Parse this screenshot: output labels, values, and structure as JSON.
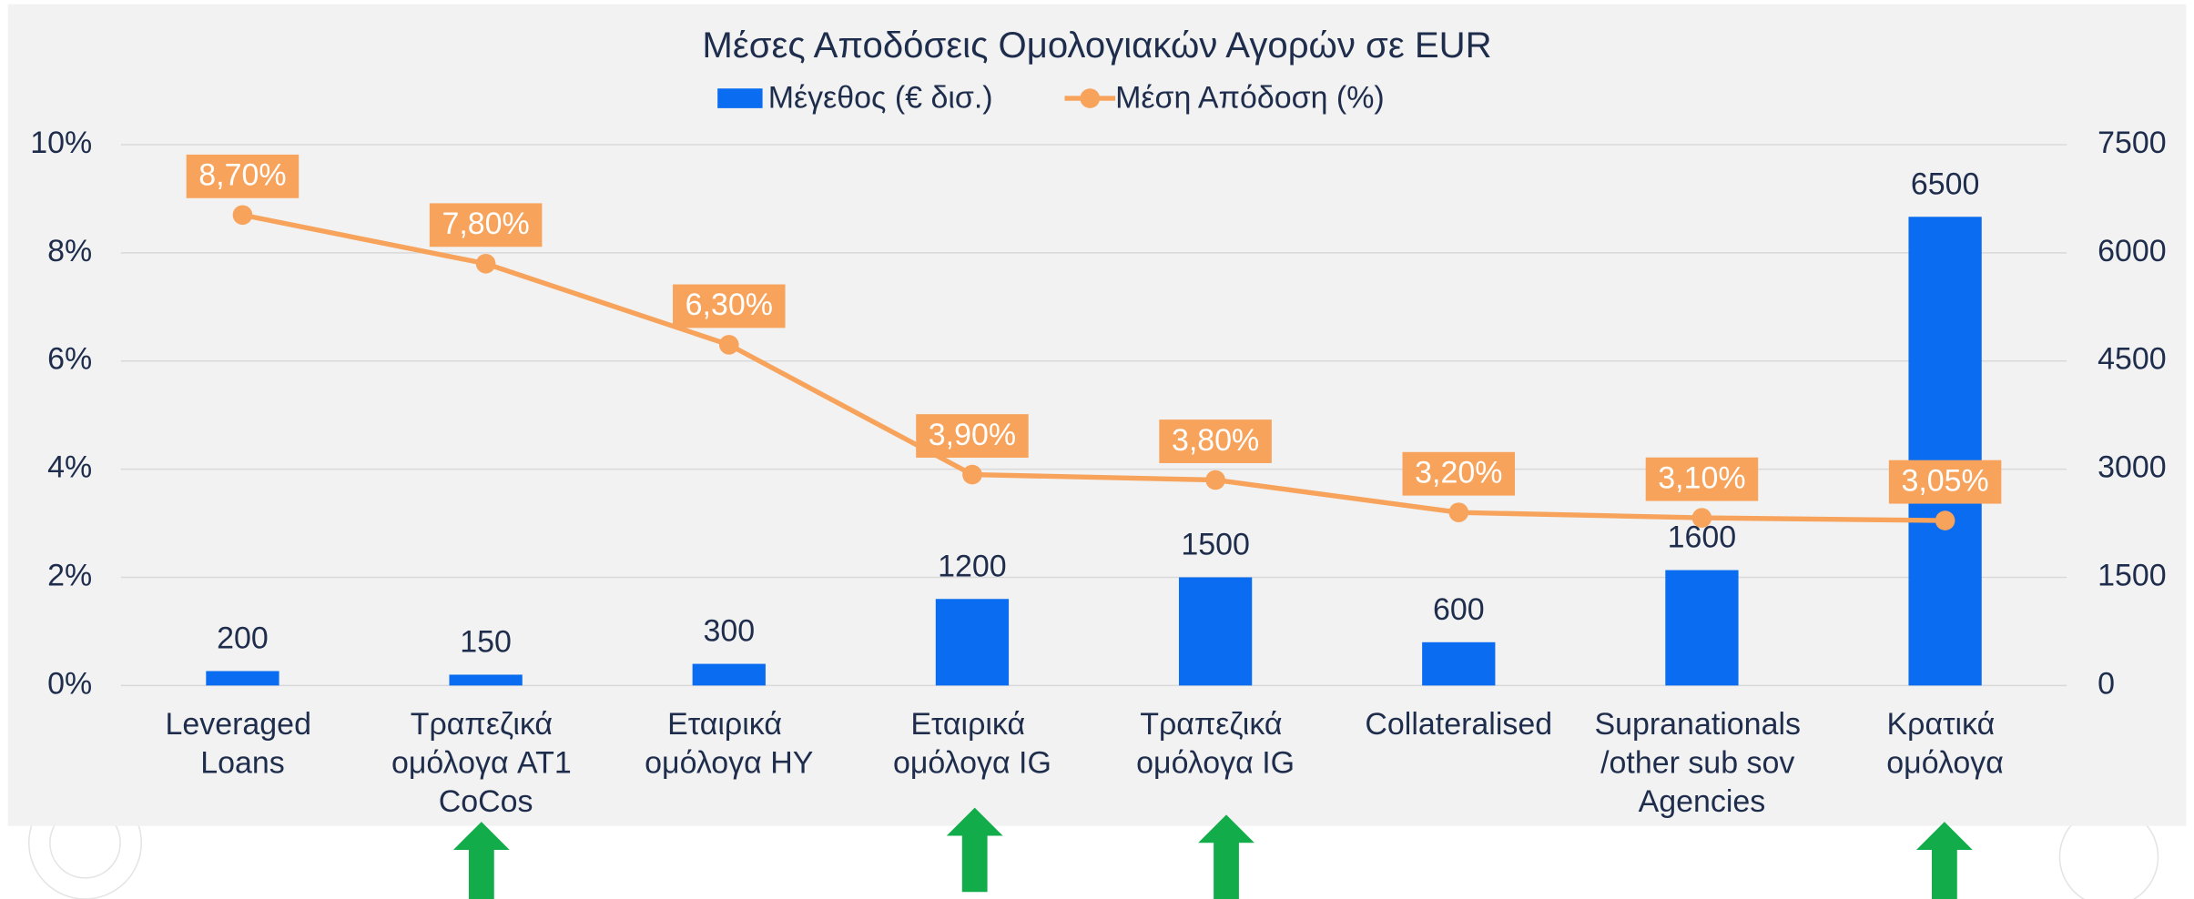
{
  "chart_data": {
    "type": "bar",
    "title": "Μέσες Αποδόσεις Ομολογιακών Αγορών σε EUR",
    "categories": [
      "Leveraged Loans",
      "Τραπεζικά ομόλογα AT1 CoCos",
      "Εταιρικά ομόλογα HY",
      "Εταιρικά ομόλογα IG",
      "Τραπεζικά ομόλογα IG",
      "Collateralised",
      "Supranationals /other sub sov Agencies",
      "Κρατικά ομόλογα"
    ],
    "series": [
      {
        "name": "Μέγεθος (€ δισ.)",
        "type": "bar",
        "axis": "y2",
        "color": "#0a6cf0",
        "values": [
          200,
          150,
          300,
          1200,
          1500,
          600,
          1600,
          6500
        ]
      },
      {
        "name": "Μέση Απόδοση (%)",
        "type": "line",
        "axis": "y",
        "color": "#f7a35c",
        "values": [
          8.7,
          7.8,
          6.3,
          3.9,
          3.8,
          3.2,
          3.1,
          3.05
        ],
        "value_labels": [
          "8,70%",
          "7,80%",
          "6,30%",
          "3,90%",
          "3,80%",
          "3,20%",
          "3,10%",
          "3,05%"
        ]
      }
    ],
    "ylim": [
      0,
      10
    ],
    "yticks": [
      {
        "value": 0,
        "label": "0%"
      },
      {
        "value": 2,
        "label": "2%"
      },
      {
        "value": 4,
        "label": "4%"
      },
      {
        "value": 6,
        "label": "6%"
      },
      {
        "value": 8,
        "label": "8%"
      },
      {
        "value": 10,
        "label": "10%"
      }
    ],
    "y2lim": [
      0,
      7500
    ],
    "y2ticks": [
      0,
      1500,
      3000,
      4500,
      6000,
      7500
    ],
    "grid": true,
    "legend": "top"
  }
}
